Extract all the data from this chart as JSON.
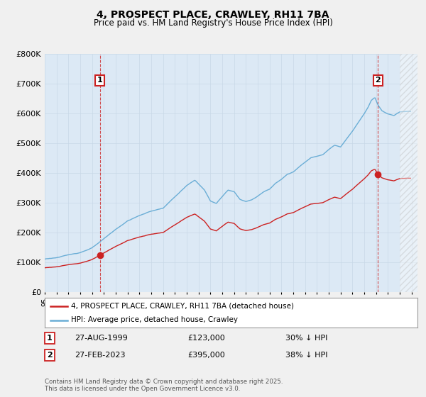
{
  "title": "4, PROSPECT PLACE, CRAWLEY, RH11 7BA",
  "subtitle": "Price paid vs. HM Land Registry's House Price Index (HPI)",
  "hpi_color": "#6baed6",
  "price_color": "#cc2222",
  "marker1_label": "1",
  "marker2_label": "2",
  "legend_line1": "4, PROSPECT PLACE, CRAWLEY, RH11 7BA (detached house)",
  "legend_line2": "HPI: Average price, detached house, Crawley",
  "table_row1": [
    "1",
    "27-AUG-1999",
    "£123,000",
    "30% ↓ HPI"
  ],
  "table_row2": [
    "2",
    "27-FEB-2023",
    "£395,000",
    "38% ↓ HPI"
  ],
  "footer": "Contains HM Land Registry data © Crown copyright and database right 2025.\nThis data is licensed under the Open Government Licence v3.0.",
  "ylim": [
    0,
    800000
  ],
  "yticks": [
    0,
    100000,
    200000,
    300000,
    400000,
    500000,
    600000,
    700000,
    800000
  ],
  "ytick_labels": [
    "£0",
    "£100K",
    "£200K",
    "£300K",
    "£400K",
    "£500K",
    "£600K",
    "£700K",
    "£800K"
  ],
  "background_color": "#f0f0f0",
  "plot_bg_color": "#dce9f5",
  "sale1_year": 1999.65,
  "sale1_price": 123000,
  "sale2_year": 2023.15,
  "sale2_price": 395000
}
